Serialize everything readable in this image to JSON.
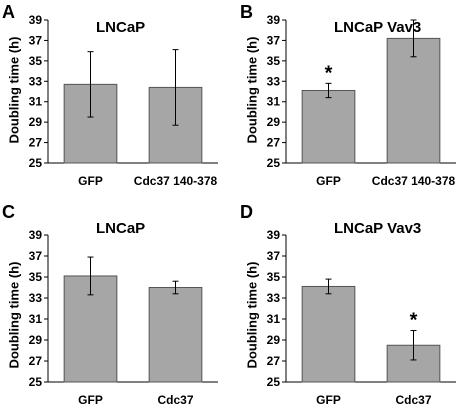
{
  "chart_data": [
    {
      "panel": "A",
      "type": "bar",
      "title": "LNCaP",
      "ylabel": "Doubling time (h)",
      "categories": [
        "GFP",
        "Cdc37 140-378"
      ],
      "values": [
        32.7,
        32.4
      ],
      "errors": [
        3.2,
        3.7
      ],
      "significance": [
        "",
        ""
      ],
      "ylim": [
        25,
        39
      ],
      "yticks": [
        "25",
        "27",
        "29",
        "31",
        "33",
        "35",
        "37",
        "39"
      ],
      "bar_color": "#a6a6a6"
    },
    {
      "panel": "B",
      "type": "bar",
      "title": "LNCaP Vav3",
      "ylabel": "Doubling time (h)",
      "categories": [
        "GFP",
        "Cdc37 140-378"
      ],
      "values": [
        32.1,
        37.2
      ],
      "errors": [
        0.7,
        1.8
      ],
      "significance": [
        "*",
        ""
      ],
      "ylim": [
        25,
        39
      ],
      "yticks": [
        "25",
        "27",
        "29",
        "31",
        "33",
        "35",
        "37",
        "39"
      ],
      "bar_color": "#a6a6a6"
    },
    {
      "panel": "C",
      "type": "bar",
      "title": "LNCaP",
      "ylabel": "Doubling time (h)",
      "categories": [
        "GFP",
        "Cdc37"
      ],
      "values": [
        35.1,
        34.0
      ],
      "errors": [
        1.8,
        0.6
      ],
      "significance": [
        "",
        ""
      ],
      "ylim": [
        25,
        39
      ],
      "yticks": [
        "25",
        "27",
        "29",
        "31",
        "33",
        "35",
        "37",
        "39"
      ],
      "bar_color": "#a6a6a6"
    },
    {
      "panel": "D",
      "type": "bar",
      "title": "LNCaP Vav3",
      "ylabel": "Doubling time (h)",
      "categories": [
        "GFP",
        "Cdc37"
      ],
      "values": [
        34.1,
        28.5
      ],
      "errors": [
        0.7,
        1.4
      ],
      "significance": [
        "",
        "*"
      ],
      "ylim": [
        25,
        39
      ],
      "yticks": [
        "25",
        "27",
        "29",
        "31",
        "33",
        "35",
        "37",
        "39"
      ],
      "bar_color": "#a6a6a6"
    }
  ]
}
